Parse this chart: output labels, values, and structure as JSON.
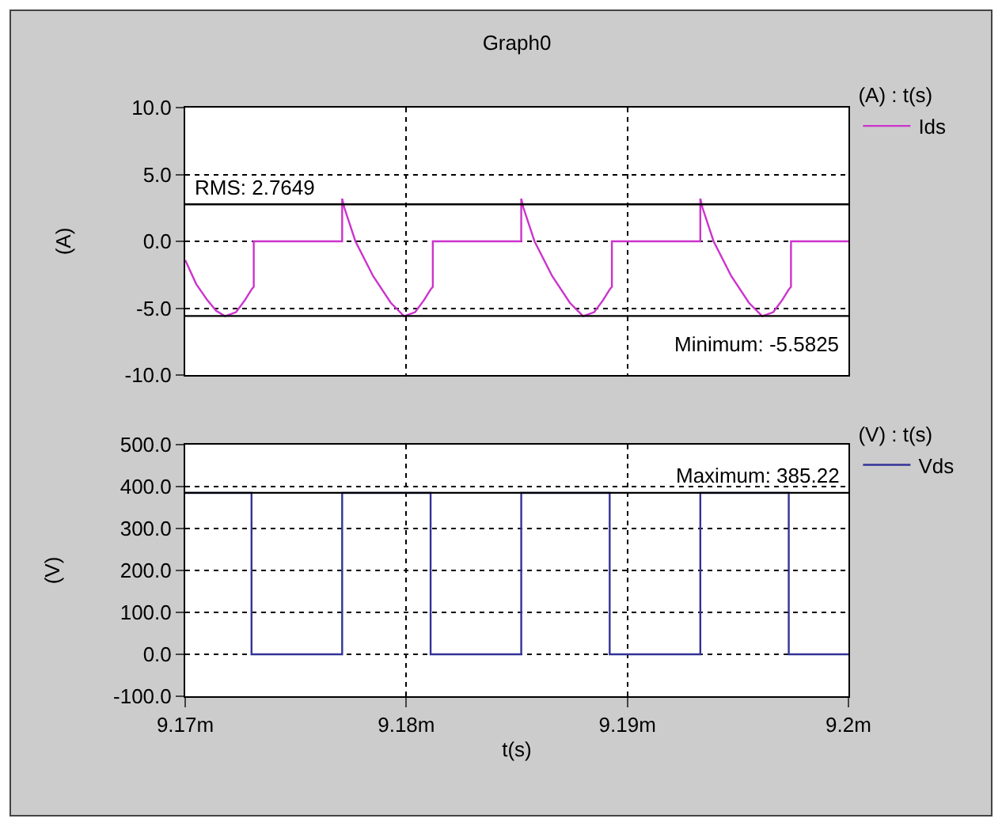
{
  "chart_data": [
    {
      "type": "line",
      "title": "Graph0",
      "ylabel": "(A)",
      "legend_title": "(A) : t(s)",
      "legend": "top right",
      "grid": true,
      "tick_labels": "y",
      "xlim": [
        9.17,
        9.2
      ],
      "xticks": [
        {
          "value": 9.17,
          "label": null
        },
        {
          "value": 9.18,
          "label": null
        },
        {
          "value": 9.19,
          "label": null
        },
        {
          "value": 9.2,
          "label": null
        }
      ],
      "ylim": [
        -10,
        10
      ],
      "yticks": [
        {
          "value": -10,
          "label": "-10.0"
        },
        {
          "value": -5,
          "label": "-5.0"
        },
        {
          "value": 0,
          "label": "0.0"
        },
        {
          "value": 5,
          "label": "5.0"
        },
        {
          "value": 10,
          "label": "10.0"
        }
      ],
      "ref_lines": [
        {
          "axis": "y",
          "value": 2.7649,
          "label": "RMS: 2.7649",
          "color": "#000000"
        },
        {
          "axis": "y",
          "value": -5.5825,
          "label": "Minimum: -5.5825",
          "color": "#000000"
        }
      ],
      "series": [
        {
          "name": "Ids",
          "color": "#cc33cc",
          "x": [
            9.17,
            9.1705,
            9.171,
            9.1714,
            9.1718,
            9.1723,
            9.1727,
            9.173,
            9.1731,
            9.1731,
            9.1771,
            9.1771,
            9.1772,
            9.1777,
            9.1785,
            9.1793,
            9.1799,
            9.1804,
            9.1808,
            9.1811,
            9.1812,
            9.1812,
            9.1852,
            9.1852,
            9.1853,
            9.1858,
            9.1866,
            9.1874,
            9.188,
            9.1885,
            9.1889,
            9.1892,
            9.1893,
            9.1893,
            9.1933,
            9.1933,
            9.1934,
            9.1939,
            9.1947,
            9.1955,
            9.1961,
            9.1966,
            9.197,
            9.1973,
            9.1974,
            9.1974,
            9.2
          ],
          "values": [
            -1.4,
            -3.2,
            -4.4,
            -5.2,
            -5.6,
            -5.3,
            -4.4,
            -3.6,
            -3.4,
            0,
            0,
            3.2,
            2.5,
            0,
            -2.6,
            -4.6,
            -5.6,
            -5.3,
            -4.4,
            -3.6,
            -3.4,
            0,
            0,
            3.2,
            2.5,
            0,
            -2.6,
            -4.6,
            -5.6,
            -5.3,
            -4.4,
            -3.6,
            -3.4,
            0,
            0,
            3.2,
            2.5,
            0,
            -2.6,
            -4.6,
            -5.6,
            -5.3,
            -4.4,
            -3.6,
            -3.4,
            0,
            0
          ]
        }
      ]
    },
    {
      "type": "line",
      "xlabel": "t(s)",
      "ylabel": "(V)",
      "legend_title": "(V) : t(s)",
      "legend": "top right",
      "grid": true,
      "xlim": [
        9.17,
        9.2
      ],
      "xticks": [
        {
          "value": 9.17,
          "label": "9.17m"
        },
        {
          "value": 9.18,
          "label": "9.18m"
        },
        {
          "value": 9.19,
          "label": "9.19m"
        },
        {
          "value": 9.2,
          "label": "9.2m"
        }
      ],
      "ylim": [
        -100,
        500
      ],
      "yticks": [
        {
          "value": -100,
          "label": "-100.0"
        },
        {
          "value": 0,
          "label": "0.0"
        },
        {
          "value": 100,
          "label": "100.0"
        },
        {
          "value": 200,
          "label": "200.0"
        },
        {
          "value": 300,
          "label": "300.0"
        },
        {
          "value": 400,
          "label": "400.0"
        },
        {
          "value": 500,
          "label": "500.0"
        }
      ],
      "ref_lines": [
        {
          "axis": "y",
          "value": 385.22,
          "label": "Maximum: 385.22",
          "color": "#000000"
        }
      ],
      "series": [
        {
          "name": "Vds",
          "color": "#333399",
          "x": [
            9.17,
            9.173,
            9.173,
            9.1771,
            9.1771,
            9.1811,
            9.1811,
            9.1852,
            9.1852,
            9.1892,
            9.1892,
            9.1933,
            9.1933,
            9.1973,
            9.1973,
            9.2
          ],
          "values": [
            385,
            385,
            0,
            0,
            385,
            385,
            0,
            0,
            385,
            385,
            0,
            0,
            385,
            385,
            0,
            0
          ]
        }
      ]
    }
  ]
}
